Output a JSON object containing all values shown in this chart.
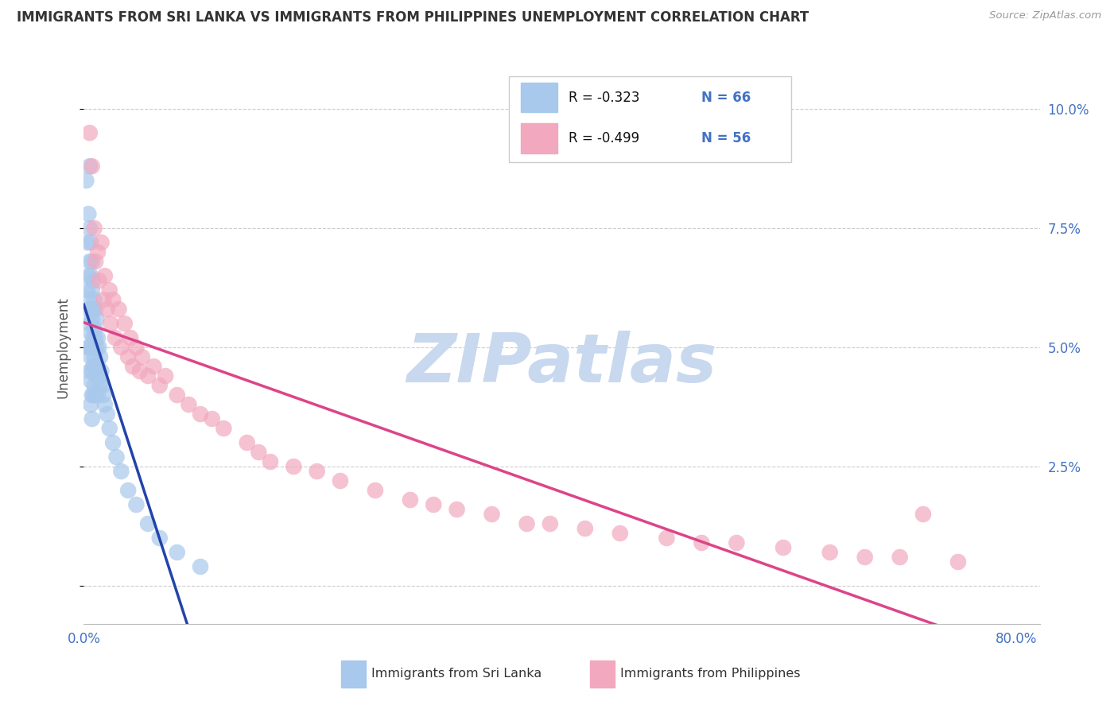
{
  "title": "IMMIGRANTS FROM SRI LANKA VS IMMIGRANTS FROM PHILIPPINES UNEMPLOYMENT CORRELATION CHART",
  "source": "Source: ZipAtlas.com",
  "ylabel": "Unemployment",
  "xlim": [
    0.0,
    0.82
  ],
  "ylim": [
    -0.008,
    0.108
  ],
  "yticks": [
    0.0,
    0.025,
    0.05,
    0.075,
    0.1
  ],
  "ytick_labels_right": [
    "",
    "2.5%",
    "5.0%",
    "7.5%",
    "10.0%"
  ],
  "legend_r1": "-0.323",
  "legend_n1": "66",
  "legend_r2": "-0.499",
  "legend_n2": "56",
  "color_srilanka": "#A8C8EC",
  "color_philippines": "#F2A8BE",
  "color_line_srilanka": "#2244AA",
  "color_line_philippines": "#DD4488",
  "color_grid": "#CCCCCC",
  "color_tick_blue": "#4472C4",
  "watermark_color": "#C8D8EE",
  "sl_x": [
    0.002,
    0.003,
    0.003,
    0.004,
    0.004,
    0.004,
    0.004,
    0.005,
    0.005,
    0.005,
    0.005,
    0.005,
    0.005,
    0.005,
    0.006,
    0.006,
    0.006,
    0.006,
    0.006,
    0.006,
    0.006,
    0.007,
    0.007,
    0.007,
    0.007,
    0.007,
    0.007,
    0.007,
    0.008,
    0.008,
    0.008,
    0.008,
    0.008,
    0.009,
    0.009,
    0.009,
    0.009,
    0.01,
    0.01,
    0.01,
    0.01,
    0.011,
    0.011,
    0.011,
    0.012,
    0.012,
    0.012,
    0.013,
    0.013,
    0.014,
    0.014,
    0.015,
    0.016,
    0.017,
    0.018,
    0.02,
    0.022,
    0.025,
    0.028,
    0.032,
    0.038,
    0.045,
    0.055,
    0.065,
    0.08,
    0.1
  ],
  "sl_y": [
    0.085,
    0.072,
    0.062,
    0.078,
    0.065,
    0.058,
    0.05,
    0.088,
    0.075,
    0.068,
    0.06,
    0.055,
    0.05,
    0.045,
    0.072,
    0.065,
    0.058,
    0.053,
    0.048,
    0.043,
    0.038,
    0.068,
    0.062,
    0.056,
    0.05,
    0.045,
    0.04,
    0.035,
    0.064,
    0.058,
    0.052,
    0.046,
    0.04,
    0.06,
    0.054,
    0.048,
    0.042,
    0.058,
    0.052,
    0.046,
    0.04,
    0.056,
    0.05,
    0.044,
    0.052,
    0.046,
    0.04,
    0.05,
    0.044,
    0.048,
    0.042,
    0.045,
    0.042,
    0.04,
    0.038,
    0.036,
    0.033,
    0.03,
    0.027,
    0.024,
    0.02,
    0.017,
    0.013,
    0.01,
    0.007,
    0.004
  ],
  "ph_x": [
    0.005,
    0.007,
    0.009,
    0.01,
    0.012,
    0.013,
    0.015,
    0.017,
    0.018,
    0.02,
    0.022,
    0.023,
    0.025,
    0.027,
    0.03,
    0.032,
    0.035,
    0.038,
    0.04,
    0.042,
    0.045,
    0.048,
    0.05,
    0.055,
    0.06,
    0.065,
    0.07,
    0.08,
    0.09,
    0.1,
    0.11,
    0.12,
    0.14,
    0.15,
    0.16,
    0.18,
    0.2,
    0.22,
    0.25,
    0.28,
    0.3,
    0.32,
    0.35,
    0.38,
    0.4,
    0.43,
    0.46,
    0.5,
    0.53,
    0.56,
    0.6,
    0.64,
    0.67,
    0.7,
    0.72,
    0.75
  ],
  "ph_y": [
    0.095,
    0.088,
    0.075,
    0.068,
    0.07,
    0.064,
    0.072,
    0.06,
    0.065,
    0.058,
    0.062,
    0.055,
    0.06,
    0.052,
    0.058,
    0.05,
    0.055,
    0.048,
    0.052,
    0.046,
    0.05,
    0.045,
    0.048,
    0.044,
    0.046,
    0.042,
    0.044,
    0.04,
    0.038,
    0.036,
    0.035,
    0.033,
    0.03,
    0.028,
    0.026,
    0.025,
    0.024,
    0.022,
    0.02,
    0.018,
    0.017,
    0.016,
    0.015,
    0.013,
    0.013,
    0.012,
    0.011,
    0.01,
    0.009,
    0.009,
    0.008,
    0.007,
    0.006,
    0.006,
    0.015,
    0.005
  ]
}
